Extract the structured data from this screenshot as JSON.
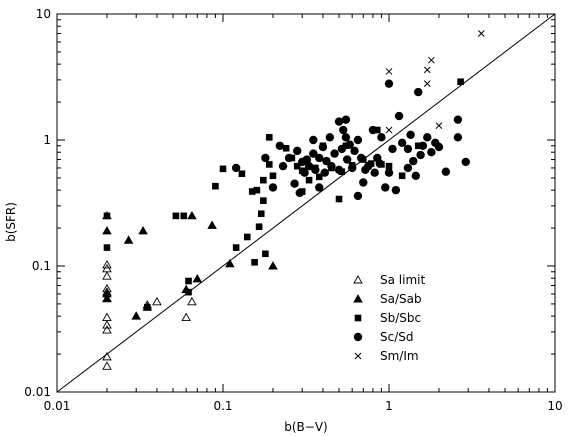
{
  "chart_data": {
    "type": "scatter",
    "title": "",
    "xlabel": "b(B−V)",
    "ylabel": "b(SFR)",
    "xscale": "log",
    "yscale": "log",
    "xlim": [
      0.01,
      10
    ],
    "ylim": [
      0.01,
      10
    ],
    "x_tick_labels": [
      "0.01",
      "0.1",
      "1",
      "10"
    ],
    "y_tick_labels": [
      "0.01",
      "0.1",
      "1",
      "10"
    ],
    "grid": false,
    "legend_position": "bottom-right",
    "reference_line": {
      "type": "one-to-one",
      "x": [
        0.01,
        10
      ],
      "y": [
        0.01,
        10
      ]
    },
    "series": [
      {
        "name": "Sa limit",
        "marker": "open-triangle",
        "points": [
          [
            0.02,
            0.102
          ],
          [
            0.02,
            0.095
          ],
          [
            0.02,
            0.083
          ],
          [
            0.02,
            0.066
          ],
          [
            0.02,
            0.062
          ],
          [
            0.02,
            0.055
          ],
          [
            0.02,
            0.039
          ],
          [
            0.02,
            0.034
          ],
          [
            0.02,
            0.031
          ],
          [
            0.02,
            0.019
          ],
          [
            0.02,
            0.016
          ],
          [
            0.035,
            0.049
          ],
          [
            0.04,
            0.052
          ],
          [
            0.06,
            0.039
          ],
          [
            0.065,
            0.052
          ]
        ]
      },
      {
        "name": "Sa/Sab",
        "marker": "filled-triangle",
        "points": [
          [
            0.02,
            0.25
          ],
          [
            0.02,
            0.19
          ],
          [
            0.02,
            0.06
          ],
          [
            0.02,
            0.055
          ],
          [
            0.027,
            0.16
          ],
          [
            0.03,
            0.04
          ],
          [
            0.033,
            0.19
          ],
          [
            0.035,
            0.047
          ],
          [
            0.06,
            0.065
          ],
          [
            0.065,
            0.25
          ],
          [
            0.07,
            0.079
          ],
          [
            0.086,
            0.21
          ],
          [
            0.11,
            0.104
          ],
          [
            0.2,
            0.1
          ]
        ]
      },
      {
        "name": "Sb/Sbc",
        "marker": "filled-square",
        "points": [
          [
            0.02,
            0.25
          ],
          [
            0.02,
            0.14
          ],
          [
            0.035,
            0.047
          ],
          [
            0.052,
            0.25
          ],
          [
            0.058,
            0.25
          ],
          [
            0.062,
            0.076
          ],
          [
            0.062,
            0.062
          ],
          [
            0.09,
            0.43
          ],
          [
            0.1,
            0.59
          ],
          [
            0.12,
            0.14
          ],
          [
            0.13,
            0.54
          ],
          [
            0.14,
            0.17
          ],
          [
            0.15,
            0.39
          ],
          [
            0.155,
            0.107
          ],
          [
            0.16,
            0.4
          ],
          [
            0.165,
            0.205
          ],
          [
            0.17,
            0.26
          ],
          [
            0.175,
            0.33
          ],
          [
            0.175,
            0.48
          ],
          [
            0.18,
            0.125
          ],
          [
            0.19,
            0.64
          ],
          [
            0.2,
            0.52
          ],
          [
            0.19,
            1.05
          ],
          [
            0.24,
            0.86
          ],
          [
            0.26,
            0.72
          ],
          [
            0.28,
            0.62
          ],
          [
            0.3,
            0.39
          ],
          [
            0.3,
            0.57
          ],
          [
            0.33,
            0.48
          ],
          [
            0.36,
            0.6
          ],
          [
            0.38,
            0.51
          ],
          [
            0.4,
            0.9
          ],
          [
            0.45,
            0.6
          ],
          [
            0.5,
            0.34
          ],
          [
            0.52,
            0.56
          ],
          [
            0.55,
            0.9
          ],
          [
            0.6,
            0.63
          ],
          [
            0.7,
            0.7
          ],
          [
            0.78,
            0.65
          ],
          [
            0.85,
            1.2
          ],
          [
            0.9,
            0.64
          ],
          [
            1.0,
            0.62
          ],
          [
            1.2,
            0.52
          ],
          [
            1.5,
            0.9
          ],
          [
            2.7,
            2.9
          ]
        ]
      },
      {
        "name": "Sc/Sd",
        "marker": "filled-circle",
        "points": [
          [
            0.12,
            0.6
          ],
          [
            0.18,
            0.72
          ],
          [
            0.2,
            0.42
          ],
          [
            0.22,
            0.9
          ],
          [
            0.23,
            0.62
          ],
          [
            0.25,
            0.72
          ],
          [
            0.27,
            0.45
          ],
          [
            0.28,
            0.82
          ],
          [
            0.29,
            0.38
          ],
          [
            0.3,
            0.67
          ],
          [
            0.31,
            0.55
          ],
          [
            0.32,
            0.7
          ],
          [
            0.33,
            0.62
          ],
          [
            0.35,
            1.0
          ],
          [
            0.35,
            0.78
          ],
          [
            0.36,
            0.58
          ],
          [
            0.38,
            0.42
          ],
          [
            0.38,
            0.72
          ],
          [
            0.4,
            0.88
          ],
          [
            0.41,
            0.55
          ],
          [
            0.42,
            0.68
          ],
          [
            0.44,
            1.05
          ],
          [
            0.45,
            0.62
          ],
          [
            0.47,
            0.78
          ],
          [
            0.5,
            0.58
          ],
          [
            0.5,
            1.4
          ],
          [
            0.52,
            0.85
          ],
          [
            0.53,
            1.2
          ],
          [
            0.55,
            1.05
          ],
          [
            0.55,
            1.45
          ],
          [
            0.56,
            0.7
          ],
          [
            0.58,
            0.92
          ],
          [
            0.6,
            0.6
          ],
          [
            0.62,
            0.82
          ],
          [
            0.65,
            0.36
          ],
          [
            0.65,
            1.0
          ],
          [
            0.68,
            0.72
          ],
          [
            0.7,
            0.46
          ],
          [
            0.72,
            0.58
          ],
          [
            0.75,
            0.62
          ],
          [
            0.8,
            1.2
          ],
          [
            0.82,
            0.55
          ],
          [
            0.85,
            0.72
          ],
          [
            0.88,
            0.65
          ],
          [
            0.9,
            1.05
          ],
          [
            0.95,
            0.42
          ],
          [
            1.0,
            2.8
          ],
          [
            1.0,
            0.55
          ],
          [
            1.05,
            0.85
          ],
          [
            1.1,
            0.4
          ],
          [
            1.15,
            1.55
          ],
          [
            1.2,
            0.95
          ],
          [
            1.3,
            0.6
          ],
          [
            1.3,
            0.85
          ],
          [
            1.35,
            1.1
          ],
          [
            1.4,
            0.68
          ],
          [
            1.45,
            0.52
          ],
          [
            1.5,
            2.4
          ],
          [
            1.55,
            0.76
          ],
          [
            1.6,
            0.9
          ],
          [
            1.7,
            1.05
          ],
          [
            1.8,
            0.8
          ],
          [
            1.9,
            0.95
          ],
          [
            2.0,
            0.88
          ],
          [
            2.2,
            0.56
          ],
          [
            2.6,
            1.45
          ],
          [
            2.6,
            1.05
          ],
          [
            2.9,
            0.67
          ]
        ]
      },
      {
        "name": "Sm/Im",
        "marker": "cross",
        "points": [
          [
            1.0,
            3.5
          ],
          [
            1.0,
            1.2
          ],
          [
            1.7,
            3.6
          ],
          [
            1.7,
            2.8
          ],
          [
            1.8,
            4.3
          ],
          [
            2.0,
            1.3
          ],
          [
            3.6,
            7.0
          ]
        ]
      }
    ]
  }
}
